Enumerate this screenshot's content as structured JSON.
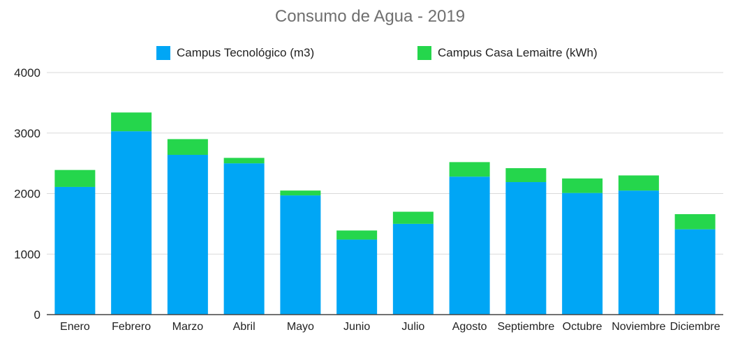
{
  "chart_data": {
    "type": "bar",
    "stacked": true,
    "title": "Consumo de Agua - 2019",
    "xlabel": "",
    "ylabel": "",
    "categories": [
      "Enero",
      "Febrero",
      "Marzo",
      "Abril",
      "Mayo",
      "Junio",
      "Julio",
      "Agosto",
      "Septiembre",
      "Octubre",
      "Noviembre",
      "Diciembre"
    ],
    "series": [
      {
        "name": "Campus Tecnológico (m3)",
        "color": "#00a6f5",
        "values": [
          2110,
          3030,
          2640,
          2500,
          1970,
          1240,
          1500,
          2280,
          2190,
          2010,
          2050,
          1410
        ]
      },
      {
        "name": "Campus Casa Lemaitre (kWh)",
        "color": "#25d64c",
        "values": [
          280,
          310,
          260,
          90,
          80,
          150,
          200,
          240,
          230,
          240,
          250,
          250
        ]
      }
    ],
    "ylim": [
      0,
      4000
    ],
    "yticks": [
      0,
      1000,
      2000,
      3000,
      4000
    ],
    "grid": true,
    "legend_position": "top"
  }
}
